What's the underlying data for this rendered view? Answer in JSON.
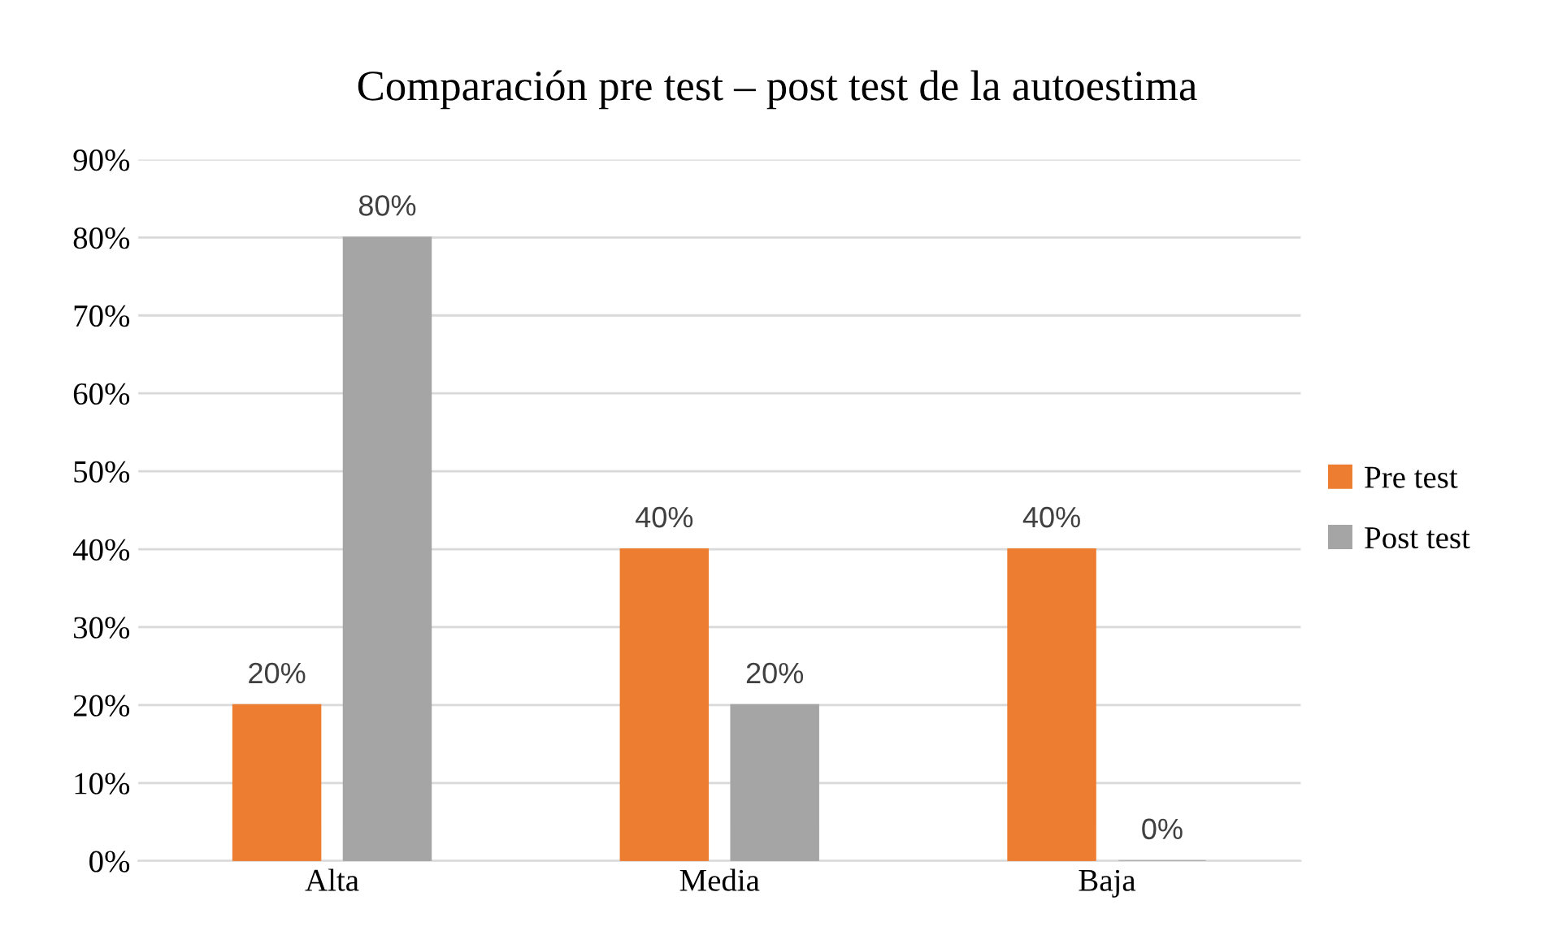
{
  "chart_data": {
    "type": "bar",
    "title": "Comparación pre test – post test de la autoestima",
    "categories": [
      "Alta",
      "Media",
      "Baja"
    ],
    "series": [
      {
        "name": "Pre test",
        "color": "#ed7d31",
        "values": [
          20,
          40,
          40
        ],
        "value_labels": [
          "20%",
          "40%",
          "40%"
        ]
      },
      {
        "name": "Post test",
        "color": "#a5a5a5",
        "values": [
          80,
          20,
          0
        ],
        "value_labels": [
          "80%",
          "20%",
          "0%"
        ]
      }
    ],
    "ylim": [
      0,
      90
    ],
    "yticks": [
      {
        "value": 0,
        "label": "0%"
      },
      {
        "value": 10,
        "label": "10%"
      },
      {
        "value": 20,
        "label": "20%"
      },
      {
        "value": 30,
        "label": "30%"
      },
      {
        "value": 40,
        "label": "40%"
      },
      {
        "value": 50,
        "label": "50%"
      },
      {
        "value": 60,
        "label": "60%"
      },
      {
        "value": 70,
        "label": "70%"
      },
      {
        "value": 80,
        "label": "80%"
      },
      {
        "value": 90,
        "label": "90%"
      }
    ],
    "grid": "y",
    "legend": "right"
  }
}
